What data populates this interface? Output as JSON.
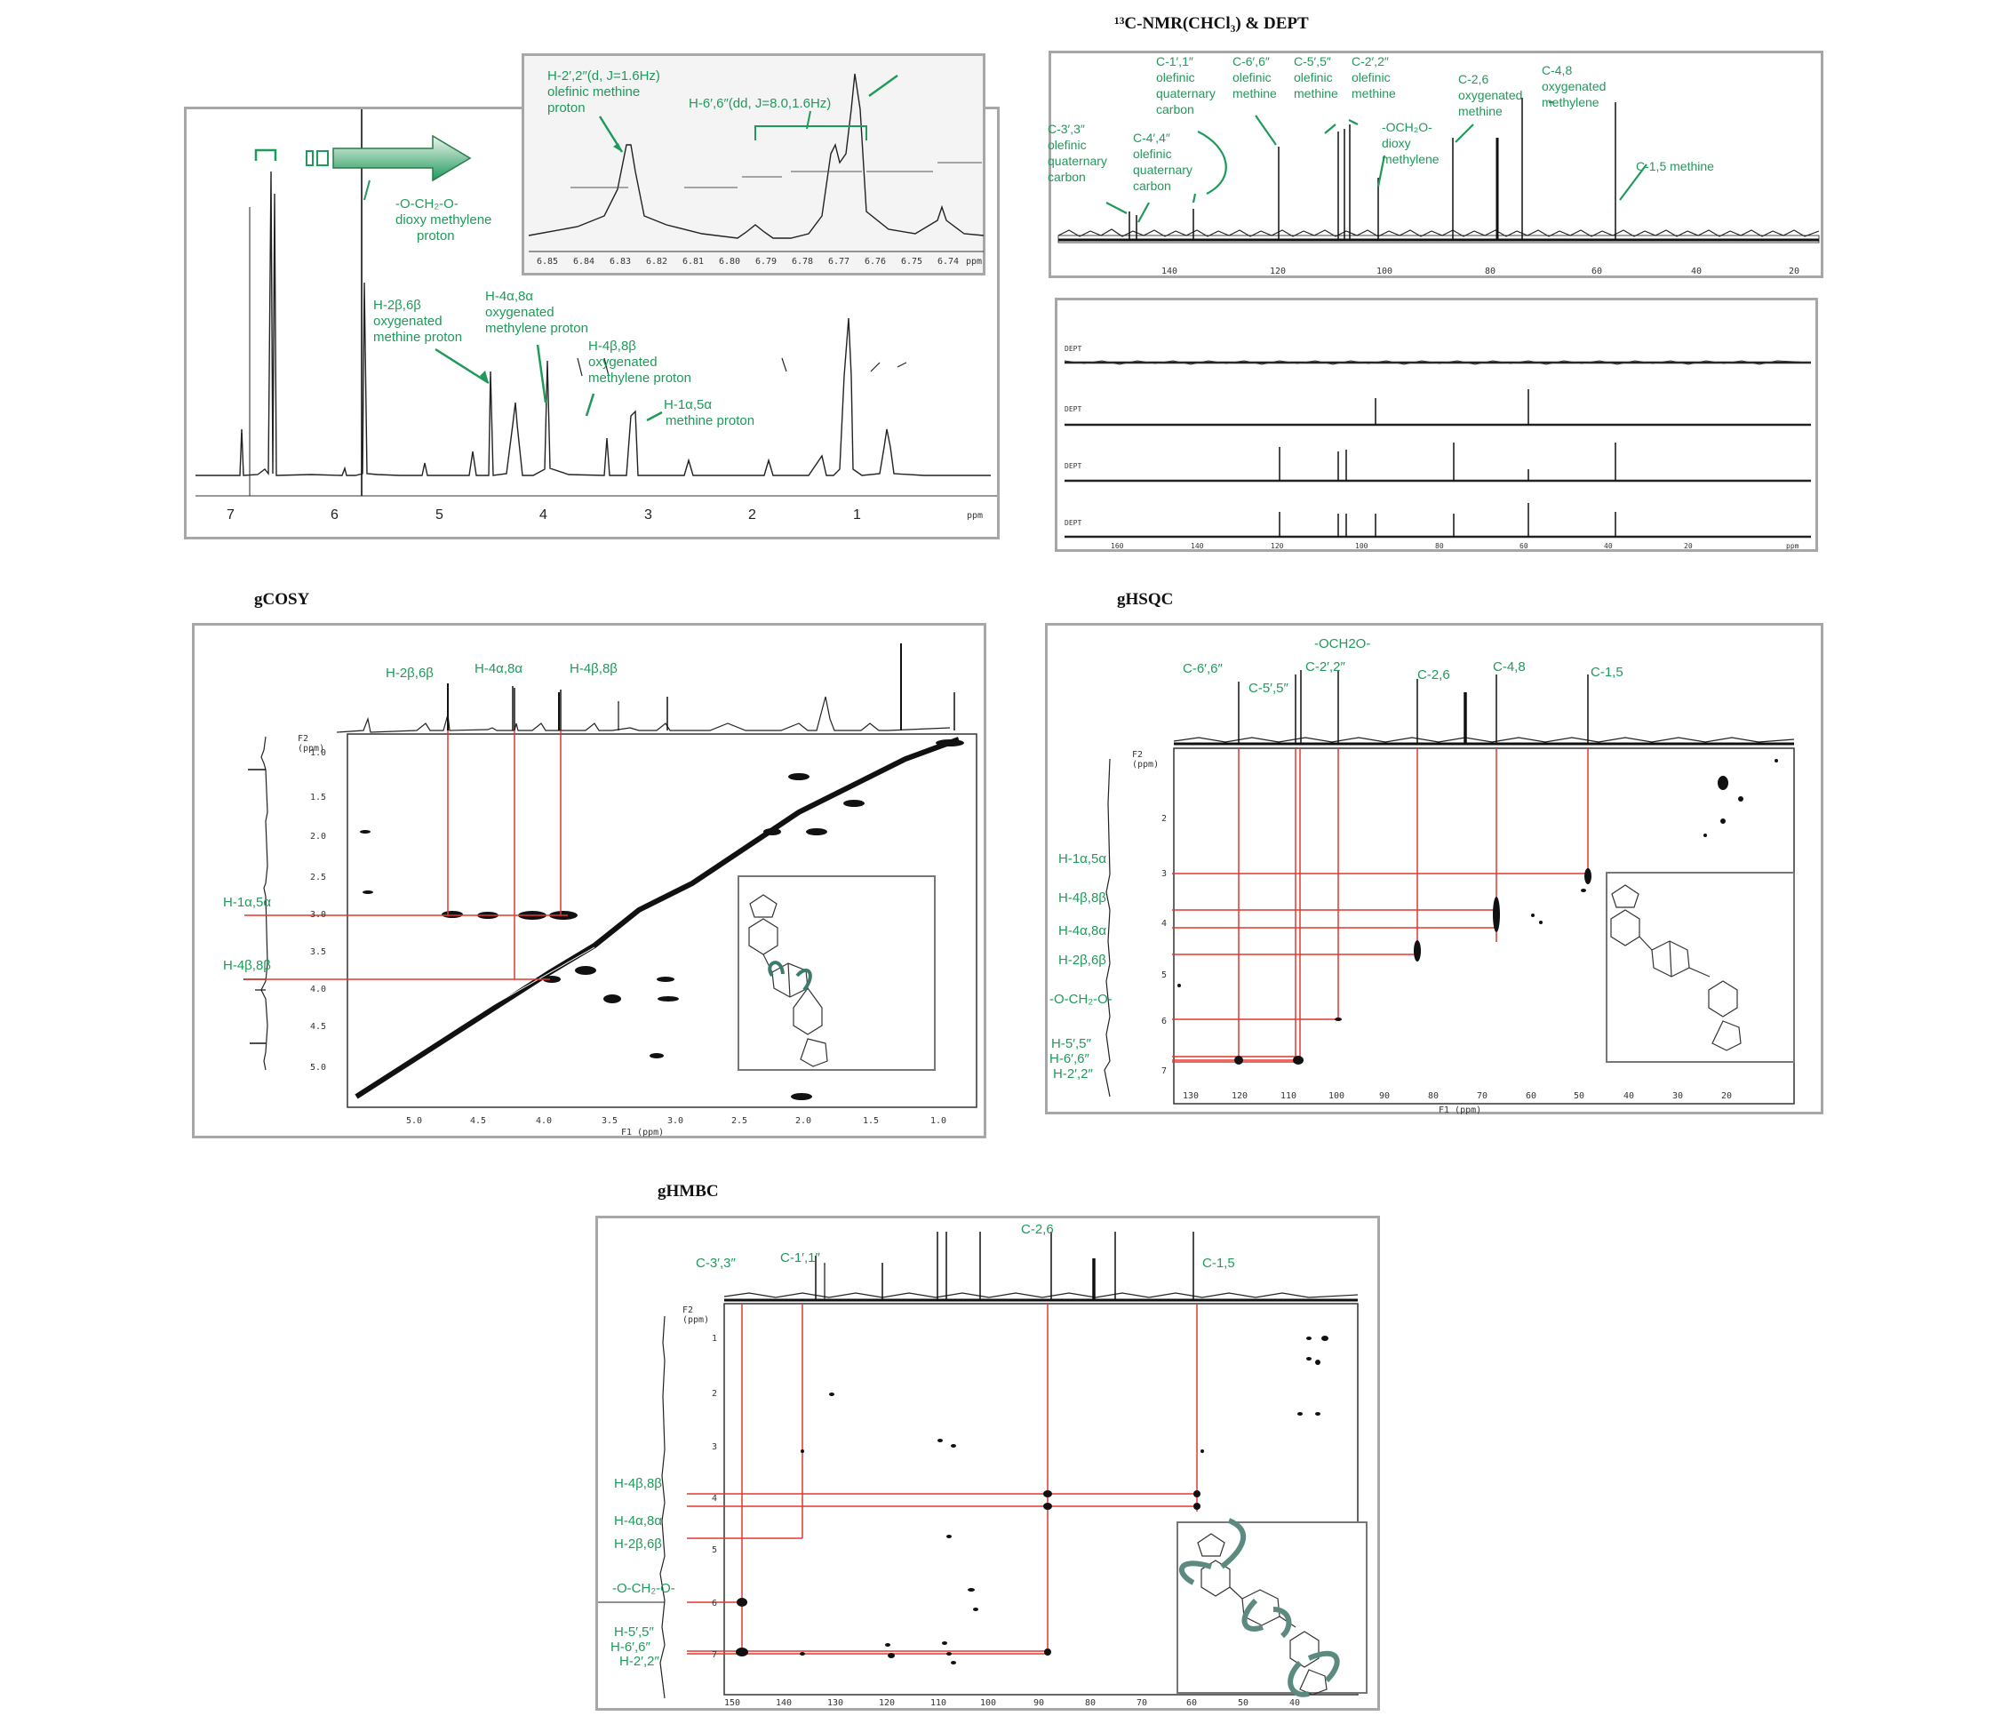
{
  "colors": {
    "annotation": "#1f9a5a",
    "guide": "#e0392f",
    "frame": "#a7a7a7",
    "trace": "#222222"
  },
  "icons": {
    "arrow": "right-arrow-icon",
    "structure": "methylenedioxy-lignan-structure"
  },
  "chart_data": [
    {
      "type": "line",
      "name": "1H-NMR",
      "x_ticks": [
        "7",
        "6",
        "5",
        "4",
        "3",
        "2",
        "1",
        "ppm"
      ],
      "annotations": [
        {
          "id": "och2o",
          "text": "-O-CH₂-O-",
          "lines": [
            "dioxy methylene",
            "proton"
          ]
        },
        {
          "id": "h26",
          "text": "H-2β,6β",
          "lines": [
            "oxygenated",
            "methine proton"
          ]
        },
        {
          "id": "h48a",
          "text": "H-4α,8α",
          "lines": [
            "oxygenated",
            "methylene proton"
          ]
        },
        {
          "id": "h48b",
          "text": "H-4β,8β",
          "lines": [
            "oxygenated",
            "methylene proton"
          ]
        },
        {
          "id": "h15",
          "text": "H-1α,5α",
          "lines": [
            "methine proton"
          ]
        }
      ],
      "inset": {
        "annotations": [
          {
            "id": "h22",
            "text": "H-2′,2″(d, J=1.6Hz)",
            "lines": [
              "olefinic methine",
              "proton"
            ]
          },
          {
            "id": "h66",
            "text": "H-6′,6″(dd, J=8.0,1.6Hz)",
            "lines": []
          }
        ],
        "x_ticks": [
          "6.85",
          "6.84",
          "6.83",
          "6.82",
          "6.81",
          "6.80",
          "6.79",
          "6.78",
          "6.77",
          "6.76",
          "6.75",
          "6.74",
          "ppm"
        ]
      }
    },
    {
      "type": "line",
      "name": "13C-NMR",
      "title": "¹³C-NMR(CHCl₃) & DEPT",
      "x_ticks": [
        "140",
        "120",
        "100",
        "80",
        "60",
        "40",
        "20"
      ],
      "annotations": [
        {
          "id": "c33",
          "text": "C-3′,3″",
          "lines": [
            "olefinic",
            "quaternary",
            "carbon"
          ]
        },
        {
          "id": "c11",
          "text": "C-1′,1″",
          "lines": [
            "olefinic",
            "quaternary",
            "carbon"
          ]
        },
        {
          "id": "c44",
          "text": "C-4′,4″",
          "lines": [
            "olefinic",
            "quaternary",
            "carbon"
          ]
        },
        {
          "id": "c66",
          "text": "C-6′,6″",
          "lines": [
            "olefinic",
            "methine"
          ]
        },
        {
          "id": "c55",
          "text": "C-5′,5″",
          "lines": [
            "olefinic",
            "methine"
          ]
        },
        {
          "id": "c22",
          "text": "C-2′,2″",
          "lines": [
            "olefinic",
            "methine"
          ]
        },
        {
          "id": "och2o",
          "text": "-OCH₂O-",
          "lines": [
            "dioxy",
            "methylene"
          ]
        },
        {
          "id": "c26",
          "text": "C-2,6",
          "lines": [
            "oxygenated",
            "methine"
          ]
        },
        {
          "id": "c48",
          "text": "C-4,8",
          "lines": [
            "oxygenated",
            "methylene"
          ]
        },
        {
          "id": "c15",
          "text": "C-1,5 methine",
          "lines": []
        }
      ],
      "dept_rows": [
        "DEPT",
        "DEPT",
        "DEPT",
        "DEPT"
      ],
      "dept_ticks": [
        "160",
        "140",
        "120",
        "100",
        "80",
        "60",
        "40",
        "20",
        "ppm"
      ]
    },
    {
      "type": "heatmap",
      "name": "gCOSY",
      "title": "gCOSY",
      "top_labels": [
        "H-2β,6β",
        "H-4α,8α",
        "H-4β,8β"
      ],
      "left_labels": [
        "H-1α,5α",
        "H-4β,8β"
      ],
      "x_ticks": [
        "5.0",
        "4.5",
        "4.0",
        "3.5",
        "3.0",
        "2.5",
        "2.0",
        "1.5",
        "1.0"
      ],
      "y_ticks": [
        "1.0",
        "1.5",
        "2.0",
        "2.5",
        "3.0",
        "3.5",
        "4.0",
        "4.5",
        "5.0"
      ],
      "xlabel": "F1 (ppm)",
      "ylabel": "F2 (ppm)"
    },
    {
      "type": "heatmap",
      "name": "gHSQC",
      "title": "gHSQC",
      "top_labels": [
        "C-6′,6″",
        "C-5′,5″",
        "-OCH2O-",
        "C-2′,2″",
        "C-2,6",
        "C-4,8",
        "C-1,5"
      ],
      "left_labels": [
        "H-1α,5α",
        "H-4β,8β",
        "H-4α,8α",
        "H-2β,6β",
        "-O-CH₂-O-",
        "H-5′,5″",
        "H-6′,6″",
        "H-2′,2″"
      ],
      "x_ticks": [
        "130",
        "120",
        "110",
        "100",
        "90",
        "80",
        "70",
        "60",
        "50",
        "40",
        "30",
        "20"
      ],
      "y_ticks": [
        "2",
        "3",
        "4",
        "5",
        "6",
        "7"
      ],
      "xlabel": "F1 (ppm)",
      "ylabel": "F2 (ppm)"
    },
    {
      "type": "heatmap",
      "name": "gHMBC",
      "title": "gHMBC",
      "top_labels": [
        "C-3′,3″",
        "C-1′,1″",
        "C-2,6",
        "C-1,5"
      ],
      "left_labels": [
        "H-4β,8β",
        "H-4α,8α",
        "H-2β,6β",
        "-O-CH₂-O-",
        "H-5′,5″",
        "H-6′,6″",
        "H-2′,2″"
      ],
      "x_ticks": [
        "150",
        "140",
        "130",
        "120",
        "110",
        "100",
        "90",
        "80",
        "70",
        "60",
        "50",
        "40"
      ],
      "y_ticks": [
        "1",
        "2",
        "3",
        "4",
        "5",
        "6",
        "7"
      ],
      "xlabel": "",
      "ylabel": "F2 (ppm)"
    }
  ]
}
